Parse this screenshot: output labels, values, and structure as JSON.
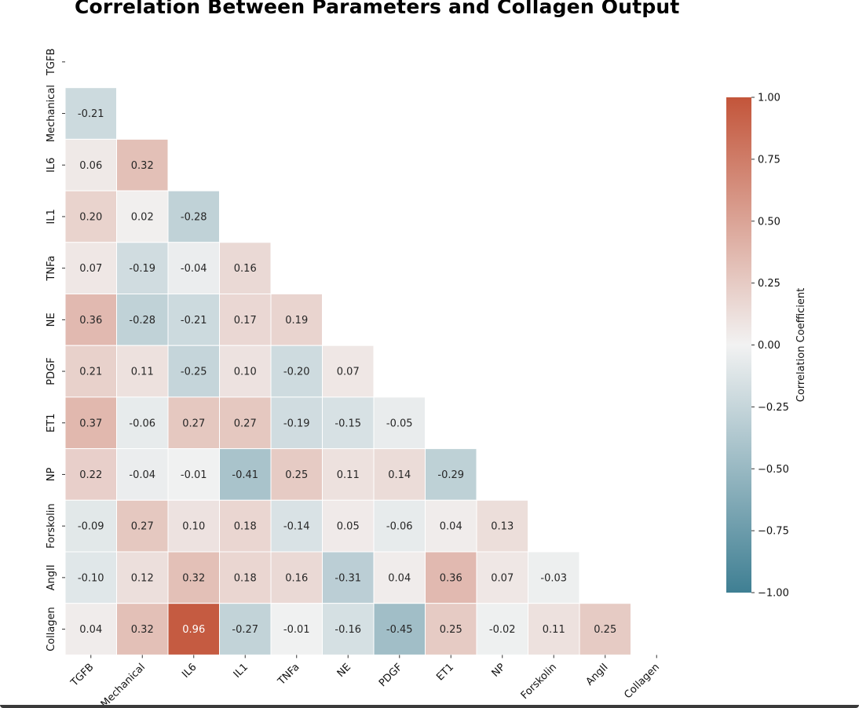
{
  "chart_data": {
    "type": "heatmap",
    "title": "Correlation Between Parameters and Collagen Output",
    "labels": [
      "TGFB",
      "Mechanical",
      "IL6",
      "IL1",
      "TNFa",
      "NE",
      "PDGF",
      "ET1",
      "NP",
      "Forskolin",
      "AngII",
      "Collagen"
    ],
    "mask": "upper-triangle-including-diagonal",
    "matrix": [
      [
        null,
        null,
        null,
        null,
        null,
        null,
        null,
        null,
        null,
        null,
        null,
        null
      ],
      [
        -0.21,
        null,
        null,
        null,
        null,
        null,
        null,
        null,
        null,
        null,
        null,
        null
      ],
      [
        0.06,
        0.32,
        null,
        null,
        null,
        null,
        null,
        null,
        null,
        null,
        null,
        null
      ],
      [
        0.2,
        0.02,
        -0.28,
        null,
        null,
        null,
        null,
        null,
        null,
        null,
        null,
        null
      ],
      [
        0.07,
        -0.19,
        -0.04,
        0.16,
        null,
        null,
        null,
        null,
        null,
        null,
        null,
        null
      ],
      [
        0.36,
        -0.28,
        -0.21,
        0.17,
        0.19,
        null,
        null,
        null,
        null,
        null,
        null,
        null
      ],
      [
        0.21,
        0.11,
        -0.25,
        0.1,
        -0.2,
        0.07,
        null,
        null,
        null,
        null,
        null,
        null
      ],
      [
        0.37,
        -0.06,
        0.27,
        0.27,
        -0.19,
        -0.15,
        -0.05,
        null,
        null,
        null,
        null,
        null
      ],
      [
        0.22,
        -0.04,
        -0.01,
        -0.41,
        0.25,
        0.11,
        0.14,
        -0.29,
        null,
        null,
        null,
        null
      ],
      [
        -0.09,
        0.27,
        0.1,
        0.18,
        -0.14,
        0.05,
        -0.06,
        0.04,
        0.13,
        null,
        null,
        null
      ],
      [
        -0.1,
        0.12,
        0.32,
        0.18,
        0.16,
        -0.31,
        0.04,
        0.36,
        0.07,
        -0.03,
        null,
        null
      ],
      [
        0.04,
        0.32,
        0.96,
        -0.27,
        -0.01,
        -0.16,
        -0.45,
        0.25,
        -0.02,
        0.11,
        0.25,
        null
      ]
    ],
    "colorbar": {
      "label": "Correlation Coefficient",
      "range": [
        -1.0,
        1.0
      ],
      "ticks": [
        1.0,
        0.75,
        0.5,
        0.25,
        0.0,
        -0.25,
        -0.5,
        -0.75,
        -1.0
      ],
      "tick_labels": [
        "1.00",
        "0.75",
        "0.50",
        "0.25",
        "0.00",
        "−0.25",
        "−0.50",
        "−0.75",
        "−1.00"
      ],
      "low_color": "#3f7f93",
      "mid_color": "#f2f2f2",
      "high_color": "#c3553a"
    }
  }
}
